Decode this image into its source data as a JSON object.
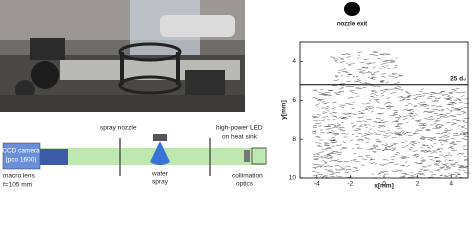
{
  "schematic": {
    "camera": [
      "CCD camera",
      "(pco 1600)"
    ],
    "macro_lens": "macro lens",
    "focal_length": "f=105 mm",
    "spray_nozzle": "spray nozzle",
    "water_spray": [
      "water",
      "spray"
    ],
    "led": [
      "high-power LED",
      "on heat sink"
    ],
    "collimation_optics": [
      "collimation",
      "optics"
    ]
  },
  "plot": {
    "nozzle_label": "nozzle exit",
    "xlabel": "x[mm]",
    "ylabel": "y[mm]",
    "xlim": [
      -5,
      5
    ],
    "ylim": [
      3,
      10
    ],
    "xticks": [
      -4,
      -2,
      0,
      2,
      4
    ],
    "yticks": [
      4,
      6,
      8,
      10
    ],
    "marker_line": {
      "y": 5.2,
      "label": "25 d₀"
    }
  }
}
